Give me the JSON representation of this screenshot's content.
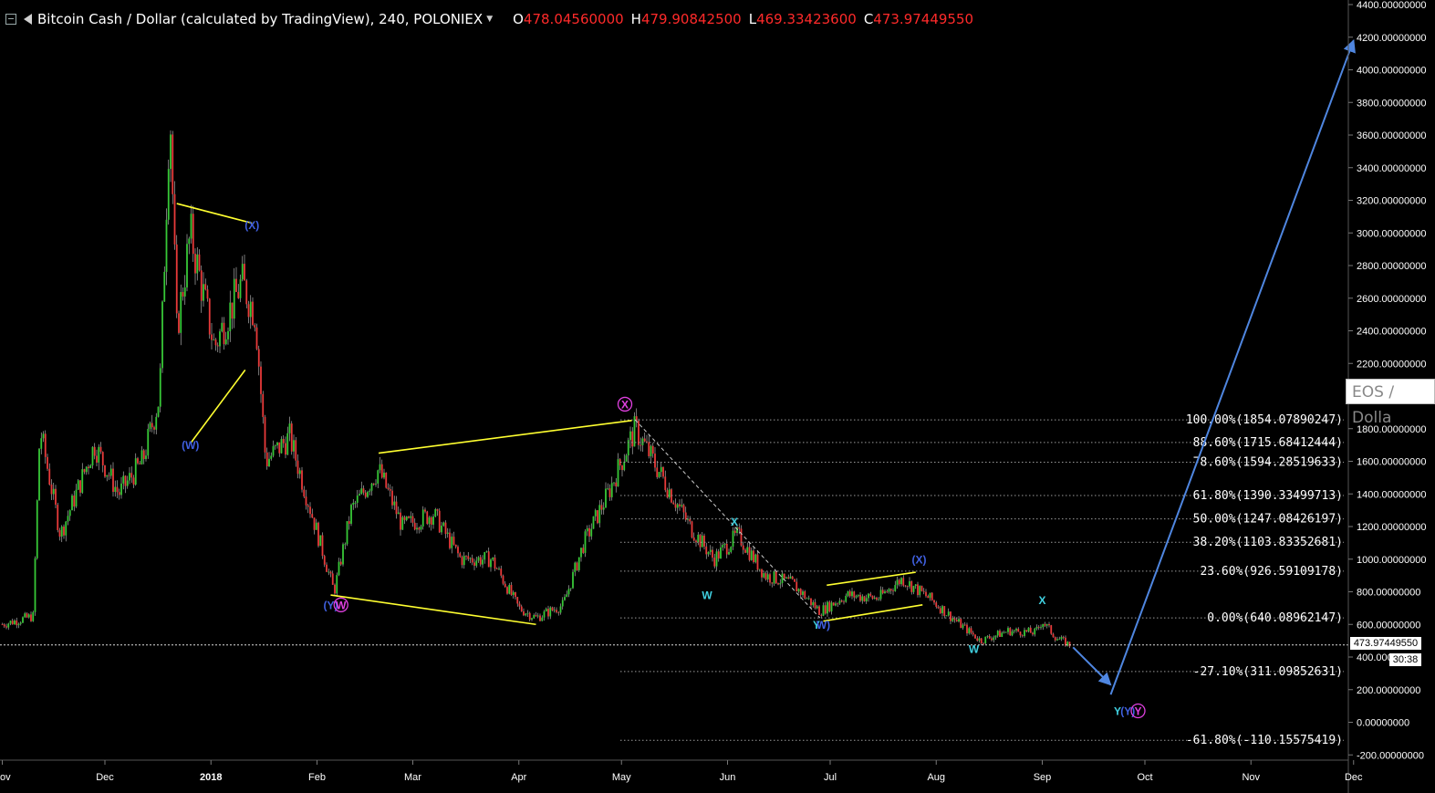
{
  "header": {
    "title": "Bitcoin Cash / Dollar (calculated by TradingView), 240, POLONIEX",
    "open_label": "O",
    "open_value": "478.04560000",
    "high_label": "H",
    "high_value": "479.90842500",
    "low_label": "L",
    "low_value": "469.33423600",
    "close_label": "C",
    "close_value": "473.97449550",
    "icons": [
      "menu-collapse-icon",
      "flag-icon",
      "caret-down-icon"
    ]
  },
  "compare_tab": "EOS / Dolla",
  "last_price_label": "473.97449550",
  "countdown_label": "30:38",
  "colors": {
    "background": "#000000",
    "up_candle": "#37c837",
    "down_candle": "#e83a3a",
    "wick": "#c8c8c8",
    "trendline": "#ffff30",
    "projection": "#4f86e0",
    "fib_line": "#9a9a9a",
    "wave_purple": "#e040e0",
    "wave_cyan": "#40d0e0",
    "wave_blue": "#4060e0",
    "price_text": "#ff2a2a"
  },
  "chart_data": {
    "type": "line",
    "title": "Bitcoin Cash / Dollar (calculated by TradingView), 240, POLONIEX",
    "x_ticks": [
      "ov",
      "Dec",
      "2018",
      "Feb",
      "Mar",
      "Apr",
      "May",
      "Jun",
      "Jul",
      "Aug",
      "Sep",
      "Oct",
      "Nov",
      "Dec"
    ],
    "y_ticks": [
      "4400.00000000",
      "4200.00000000",
      "4000.00000000",
      "3800.00000000",
      "3600.00000000",
      "3400.00000000",
      "3200.00000000",
      "3000.00000000",
      "2800.00000000",
      "2600.00000000",
      "2400.00000000",
      "2200.00000000",
      "2000.00000000",
      "1800.00000000",
      "1600.00000000",
      "1400.00000000",
      "1200.00000000",
      "1000.00000000",
      "800.00000000",
      "600.00000000",
      "400.00000000",
      "200.00000000",
      "0.00000000",
      "-200.00000000"
    ],
    "ylim": [
      -200,
      4400
    ],
    "grid": false,
    "series": [
      {
        "values_by_month": [
          {
            "date": "2017-11-01",
            "price": 600
          },
          {
            "date": "2017-11-10",
            "price": 650
          },
          {
            "date": "2017-11-12",
            "price": 1800
          },
          {
            "date": "2017-11-18",
            "price": 1150
          },
          {
            "date": "2017-11-28",
            "price": 1700
          },
          {
            "date": "2017-12-05",
            "price": 1400
          },
          {
            "date": "2017-12-12",
            "price": 1600
          },
          {
            "date": "2017-12-17",
            "price": 2000
          },
          {
            "date": "2017-12-20",
            "price": 3800
          },
          {
            "date": "2017-12-22",
            "price": 2400
          },
          {
            "date": "2017-12-26",
            "price": 3000
          },
          {
            "date": "2018-01-02",
            "price": 2300
          },
          {
            "date": "2018-01-10",
            "price": 2700
          },
          {
            "date": "2018-01-14",
            "price": 2500
          },
          {
            "date": "2018-01-17",
            "price": 1600
          },
          {
            "date": "2018-01-24",
            "price": 1750
          },
          {
            "date": "2018-02-06",
            "price": 800
          },
          {
            "date": "2018-02-11",
            "price": 1300
          },
          {
            "date": "2018-02-19",
            "price": 1550
          },
          {
            "date": "2018-02-26",
            "price": 1200
          },
          {
            "date": "2018-03-07",
            "price": 1280
          },
          {
            "date": "2018-03-15",
            "price": 1000
          },
          {
            "date": "2018-03-24",
            "price": 1000
          },
          {
            "date": "2018-04-01",
            "price": 700
          },
          {
            "date": "2018-04-06",
            "price": 640
          },
          {
            "date": "2018-04-14",
            "price": 720
          },
          {
            "date": "2018-04-20",
            "price": 1100
          },
          {
            "date": "2018-04-27",
            "price": 1400
          },
          {
            "date": "2018-05-05",
            "price": 1800
          },
          {
            "date": "2018-05-13",
            "price": 1500
          },
          {
            "date": "2018-05-21",
            "price": 1200
          },
          {
            "date": "2018-05-28",
            "price": 1000
          },
          {
            "date": "2018-06-04",
            "price": 1150
          },
          {
            "date": "2018-06-12",
            "price": 900
          },
          {
            "date": "2018-06-20",
            "price": 850
          },
          {
            "date": "2018-06-28",
            "price": 680
          },
          {
            "date": "2018-07-06",
            "price": 780
          },
          {
            "date": "2018-07-15",
            "price": 760
          },
          {
            "date": "2018-07-22",
            "price": 880
          },
          {
            "date": "2018-07-30",
            "price": 760
          },
          {
            "date": "2018-08-08",
            "price": 600
          },
          {
            "date": "2018-08-14",
            "price": 500
          },
          {
            "date": "2018-08-22",
            "price": 560
          },
          {
            "date": "2018-08-30",
            "price": 550
          },
          {
            "date": "2018-09-01",
            "price": 620
          },
          {
            "date": "2018-09-05",
            "price": 520
          },
          {
            "date": "2018-09-09",
            "price": 474
          }
        ]
      }
    ],
    "fib_levels": [
      {
        "label": "100.00%(1854.07890247)",
        "price": 1854.07890247
      },
      {
        "label": "88.60%(1715.68412444)",
        "price": 1715.68412444
      },
      {
        "label": "78.60%(1594.28519633)",
        "price": 1594.28519633
      },
      {
        "label": "61.80%(1390.33499713)",
        "price": 1390.33499713
      },
      {
        "label": "50.00%(1247.08426197)",
        "price": 1247.08426197
      },
      {
        "label": "38.20%(1103.83352681)",
        "price": 1103.83352681
      },
      {
        "label": "23.60%(926.59109178)",
        "price": 926.59109178
      },
      {
        "label": "0.00%(640.08962147)",
        "price": 640.08962147
      },
      {
        "label": "-27.10%(311.09852631)",
        "price": 311.09852631
      },
      {
        "label": "-61.80%(-110.15575419)",
        "price": -110.15575419
      }
    ],
    "wave_labels": [
      {
        "text": "(X)",
        "style": "blue",
        "date": "2018-01-13",
        "price": 3050
      },
      {
        "text": "(W)",
        "style": "blue",
        "date": "2017-12-26",
        "price": 1700
      },
      {
        "text": "(Y)",
        "style": "blue",
        "date": "2018-02-05",
        "price": 720
      },
      {
        "text": "W",
        "style": "purple-circle",
        "date": "2018-02-08",
        "price": 720
      },
      {
        "text": "X",
        "style": "purple-circle",
        "date": "2018-05-02",
        "price": 1950
      },
      {
        "text": "X",
        "style": "cyan",
        "date": "2018-06-03",
        "price": 1230
      },
      {
        "text": "W",
        "style": "cyan",
        "date": "2018-05-26",
        "price": 780
      },
      {
        "text": "Y",
        "style": "cyan",
        "date": "2018-06-27",
        "price": 600
      },
      {
        "text": "W)",
        "style": "blue",
        "date": "2018-06-29",
        "price": 600
      },
      {
        "text": "(X)",
        "style": "blue",
        "date": "2018-07-27",
        "price": 1000
      },
      {
        "text": "W",
        "style": "cyan",
        "date": "2018-08-12",
        "price": 450
      },
      {
        "text": "X",
        "style": "cyan",
        "date": "2018-09-01",
        "price": 750
      },
      {
        "text": "Y",
        "style": "cyan",
        "date": "2018-09-23",
        "price": 70
      },
      {
        "text": "(Y)",
        "style": "blue",
        "date": "2018-09-26",
        "price": 70
      },
      {
        "text": "Y",
        "style": "purple-circle",
        "date": "2018-09-29",
        "price": 70
      }
    ]
  }
}
